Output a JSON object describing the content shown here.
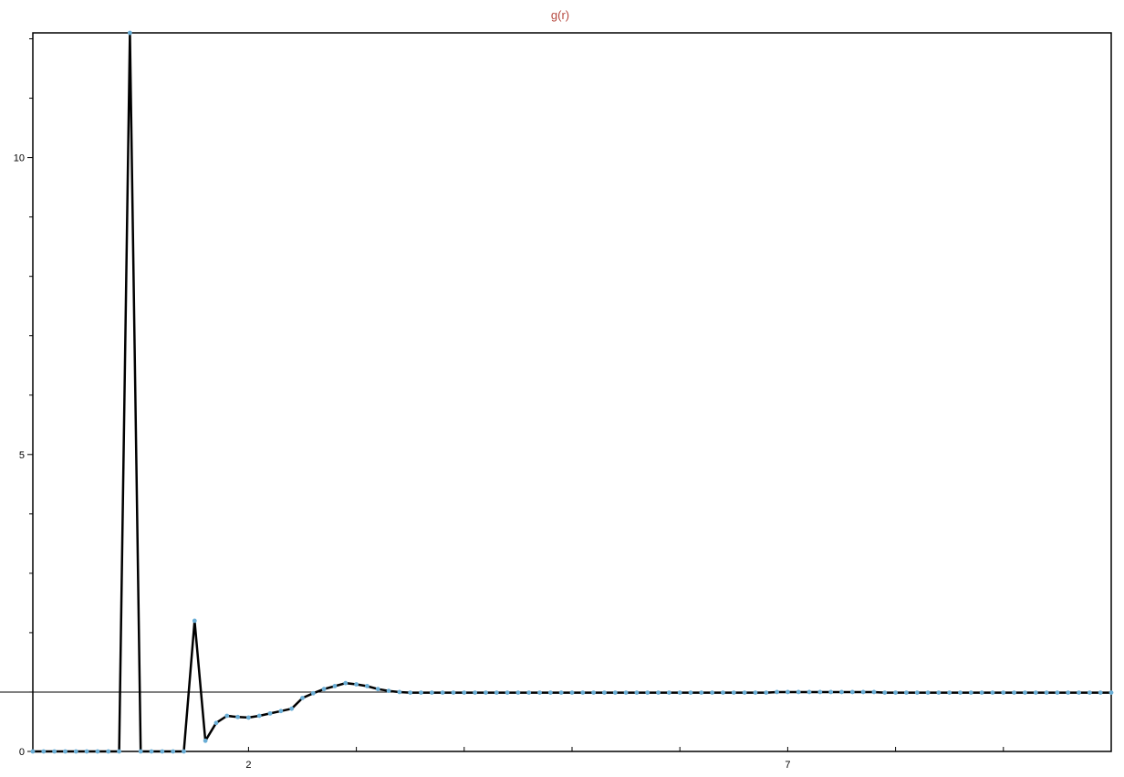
{
  "chart_data": {
    "type": "line",
    "title": "g(r)",
    "xlabel": "",
    "ylabel": "",
    "xlim": [
      0,
      10
    ],
    "ylim": [
      0,
      12.1
    ],
    "x_ticks": [
      0,
      1,
      2,
      3,
      4,
      5,
      6,
      7,
      8,
      9,
      10
    ],
    "x_tick_labels": [
      {
        "value": 2,
        "label": "2"
      },
      {
        "value": 7,
        "label": "7"
      }
    ],
    "y_ticks": [
      0,
      1,
      2,
      3,
      4,
      5,
      6,
      7,
      8,
      9,
      10,
      11,
      12
    ],
    "y_tick_labels": [
      {
        "value": 0,
        "label": "0"
      },
      {
        "value": 5,
        "label": "5"
      },
      {
        "value": 10,
        "label": "10"
      }
    ],
    "reference_line": {
      "y": 1.0
    },
    "grid": false,
    "colors": {
      "line": "#000000",
      "markers": "#6aaed6",
      "title": "#b5473d",
      "reference": "#000000"
    },
    "series": [
      {
        "x": [
          0.0,
          0.1,
          0.2,
          0.3,
          0.4,
          0.5,
          0.6,
          0.7,
          0.8,
          0.9,
          1.0,
          1.1,
          1.2,
          1.3,
          1.4,
          1.5,
          1.6,
          1.7,
          1.8,
          1.9,
          2.0,
          2.1,
          2.2,
          2.3,
          2.4,
          2.5,
          2.6,
          2.7,
          2.8,
          2.9,
          3.0,
          3.1,
          3.2,
          3.3,
          3.4,
          3.5,
          3.6,
          3.7,
          3.8,
          3.9,
          4.0,
          4.1,
          4.2,
          4.3,
          4.4,
          4.5,
          4.6,
          4.7,
          4.8,
          4.9,
          5.0,
          5.1,
          5.2,
          5.3,
          5.4,
          5.5,
          5.6,
          5.7,
          5.8,
          5.9,
          6.0,
          6.1,
          6.2,
          6.3,
          6.4,
          6.5,
          6.6,
          6.7,
          6.8,
          6.9,
          7.0,
          7.1,
          7.2,
          7.3,
          7.4,
          7.5,
          7.6,
          7.7,
          7.8,
          7.9,
          8.0,
          8.1,
          8.2,
          8.3,
          8.4,
          8.5,
          8.6,
          8.7,
          8.8,
          8.9,
          9.0,
          9.1,
          9.2,
          9.3,
          9.4,
          9.5,
          9.6,
          9.7,
          9.8,
          9.9,
          10.0
        ],
        "values": [
          0,
          0,
          0,
          0,
          0,
          0,
          0,
          0,
          0,
          12.1,
          0,
          0,
          0,
          0,
          0,
          2.2,
          0.18,
          0.48,
          0.6,
          0.58,
          0.57,
          0.6,
          0.64,
          0.68,
          0.72,
          0.9,
          0.98,
          1.05,
          1.1,
          1.15,
          1.13,
          1.1,
          1.05,
          1.02,
          1.0,
          0.99,
          0.99,
          0.99,
          0.99,
          0.99,
          0.99,
          0.99,
          0.99,
          0.99,
          0.99,
          0.99,
          0.99,
          0.99,
          0.99,
          0.99,
          0.99,
          0.99,
          0.99,
          0.99,
          0.99,
          0.99,
          0.99,
          0.99,
          0.99,
          0.99,
          0.99,
          0.99,
          0.99,
          0.99,
          0.99,
          0.99,
          0.99,
          0.99,
          0.99,
          1.0,
          1.0,
          1.0,
          1.0,
          1.0,
          1.0,
          1.0,
          1.0,
          1.0,
          1.0,
          0.99,
          0.99,
          0.99,
          0.99,
          0.99,
          0.99,
          0.99,
          0.99,
          0.99,
          0.99,
          0.99,
          0.99,
          0.99,
          0.99,
          0.99,
          0.99,
          0.99,
          0.99,
          0.99,
          0.99,
          0.99,
          0.99
        ]
      }
    ]
  }
}
